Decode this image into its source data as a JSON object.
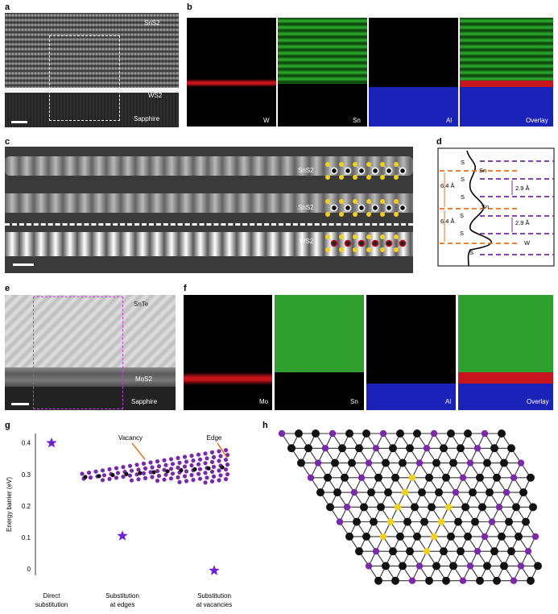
{
  "panels": {
    "a": {
      "letter": "a",
      "labels": [
        "SnS2",
        "WS2",
        "Sapphire"
      ]
    },
    "b": {
      "letter": "b",
      "maps": [
        "W",
        "Sn",
        "Al",
        "Overlay"
      ]
    },
    "c": {
      "letter": "c",
      "labels": [
        "SnS2",
        "SnS2",
        "WS2"
      ]
    },
    "d": {
      "letter": "d",
      "atoms": [
        "S",
        "Sn",
        "S",
        "S",
        "Sn",
        "S",
        "S",
        "W",
        "S"
      ],
      "spacings": [
        "6.4 Å",
        "6.4 Å"
      ],
      "gaps": [
        "2.9 Å",
        "2.9 Å"
      ]
    },
    "e": {
      "letter": "e",
      "labels": [
        "SnTe",
        "MoS2",
        "Sapphire"
      ]
    },
    "f": {
      "letter": "f",
      "maps": [
        "Mo",
        "Sn",
        "Al",
        "Overlay"
      ]
    },
    "g": {
      "letter": "g",
      "annotations": [
        "Vacancy",
        "Edge"
      ]
    },
    "h": {
      "letter": "h"
    }
  },
  "colors": {
    "W": "#c8141c",
    "Sn": "#2fae2f",
    "Al": "#2030d0",
    "purple": "#7a2aa8",
    "orange": "#e8701a",
    "yellow": "#f0d020"
  },
  "chart_data": {
    "type": "scatter",
    "ylabel": "Energy barrier (eV)",
    "xlabel": "",
    "categories": [
      "Direct substitution",
      "Substitution at edges",
      "Substitution at vacancies"
    ],
    "category_lines": [
      [
        "Direct",
        "substitution"
      ],
      [
        "Substitution",
        "at edges"
      ],
      [
        "Substitution",
        "at vacancies"
      ]
    ],
    "values": [
      0.4,
      0.105,
      -0.005
    ],
    "yticks": [
      "0",
      "0.1",
      "0.2",
      "0.3",
      "0.4"
    ],
    "ylim": [
      -0.02,
      0.43
    ],
    "marker": "star",
    "color": "#6a22d6"
  }
}
